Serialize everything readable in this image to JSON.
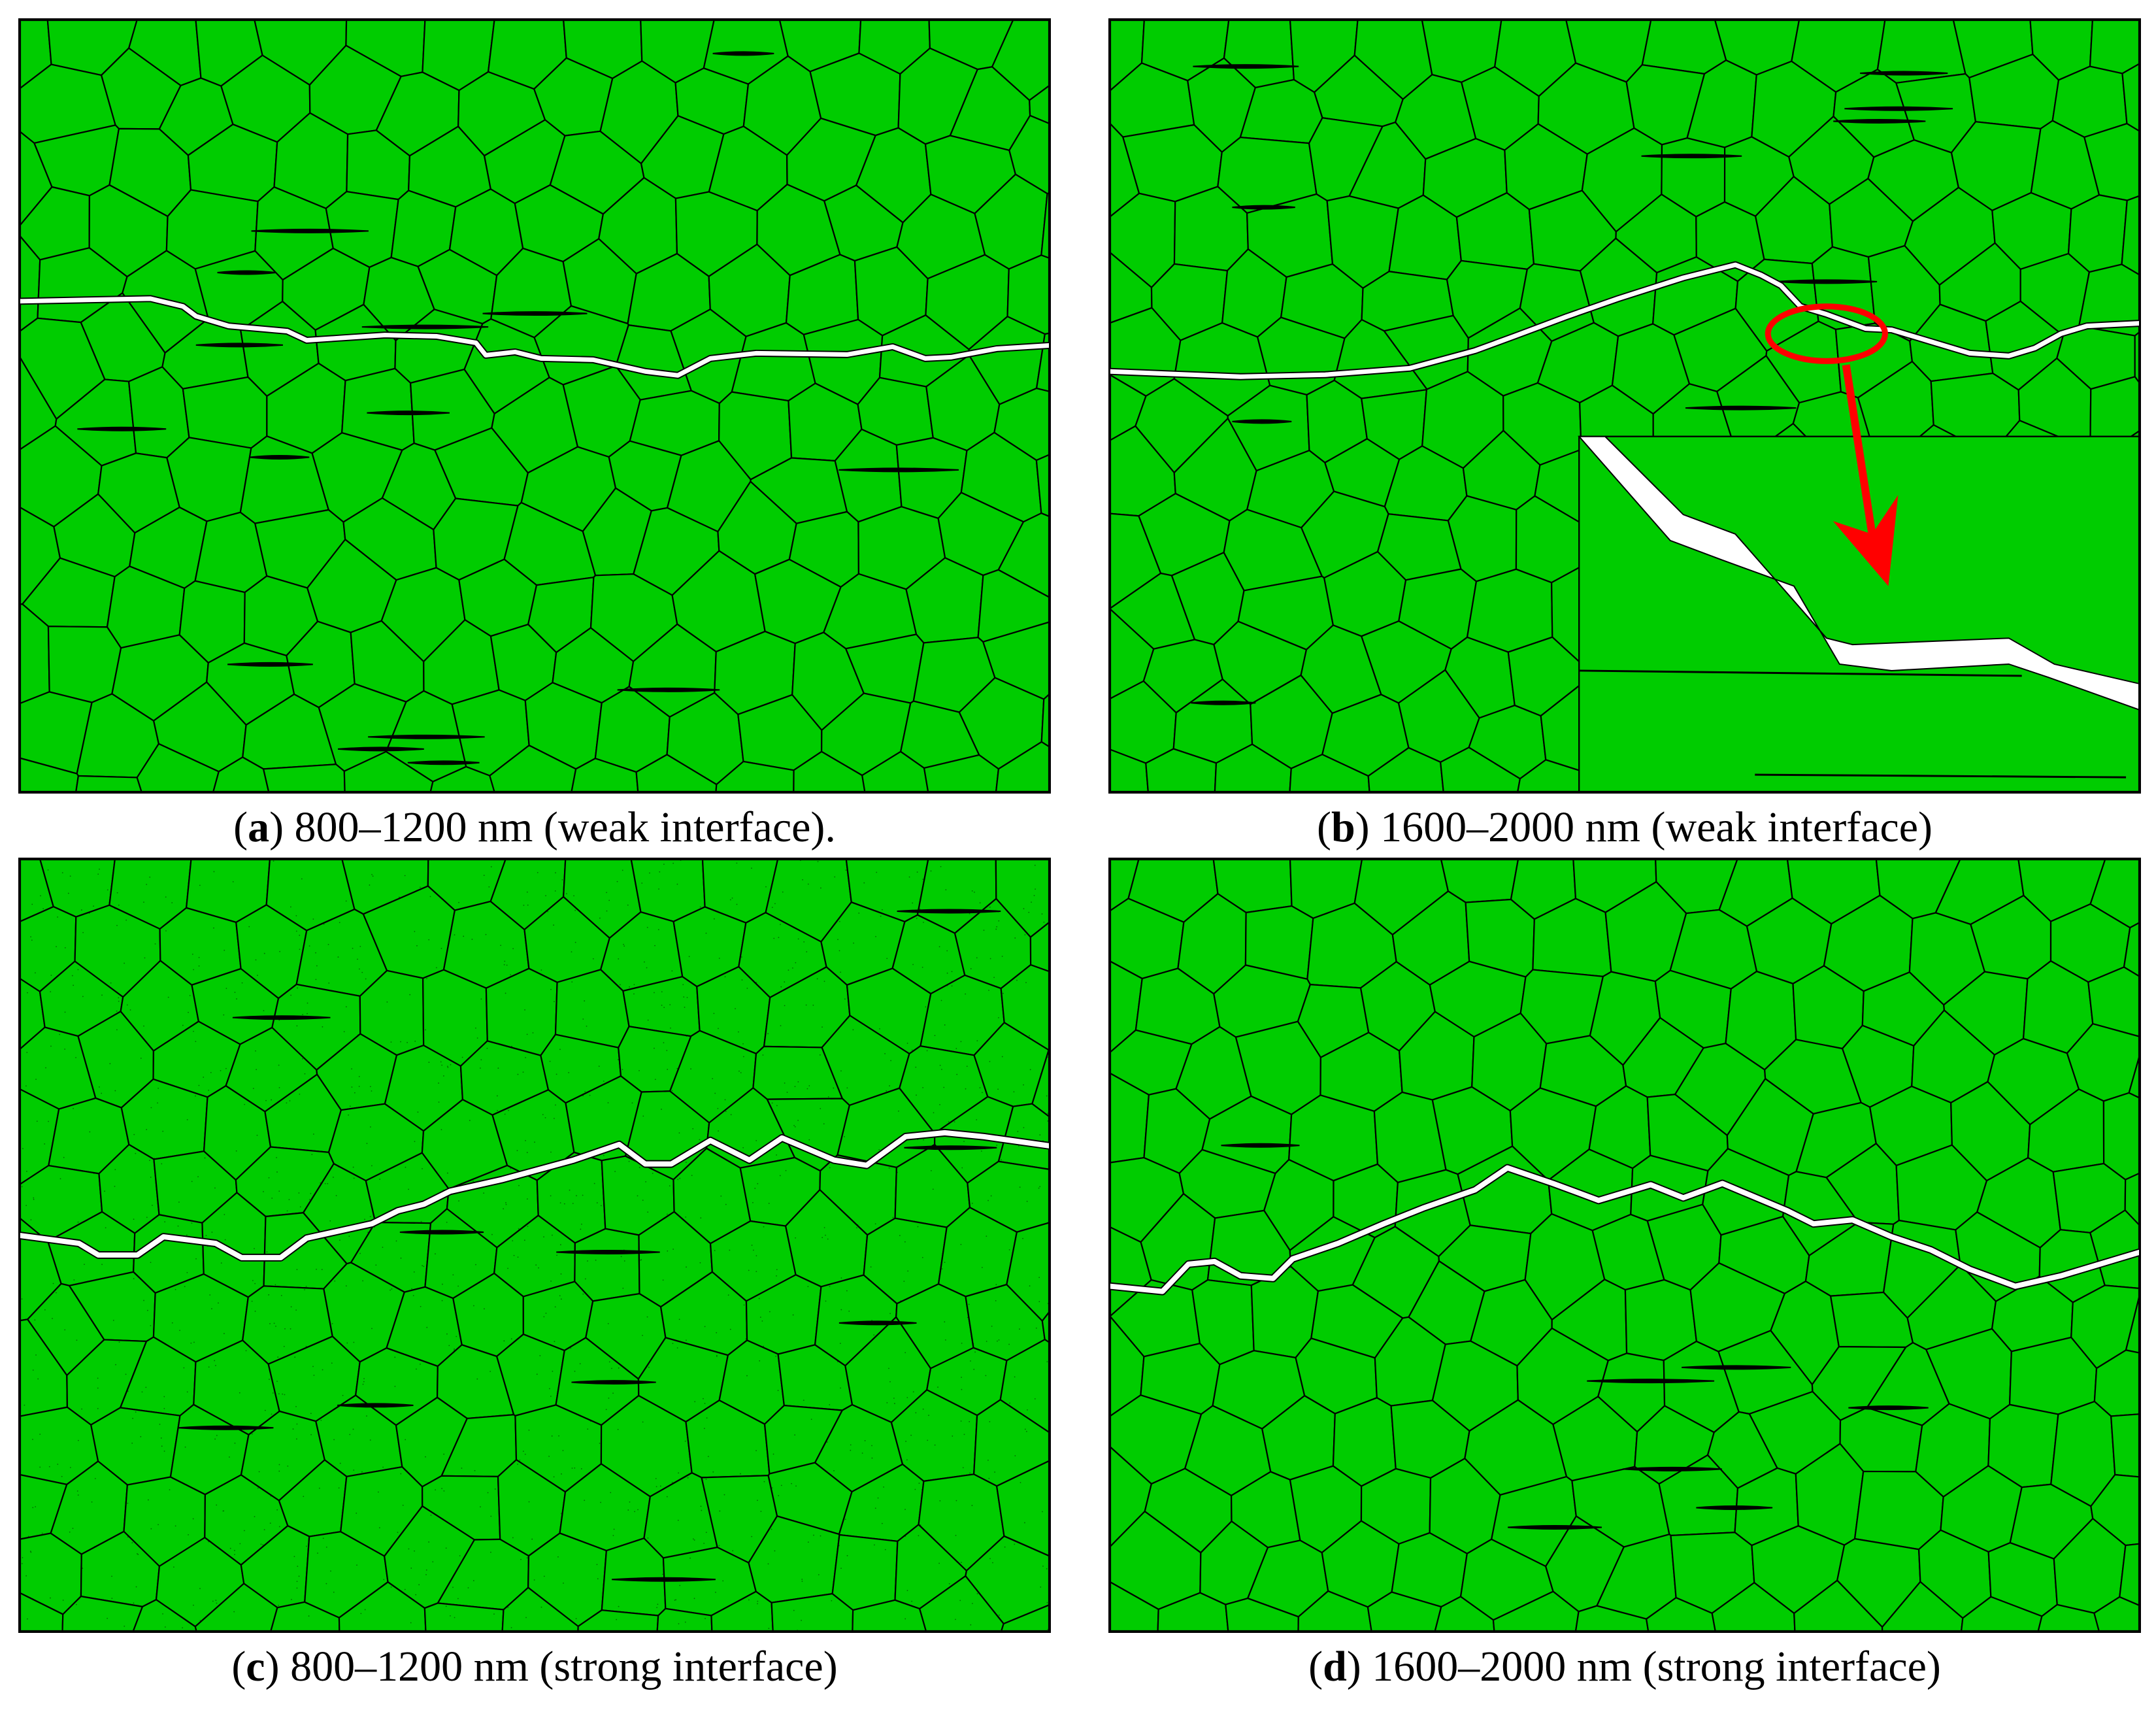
{
  "colors": {
    "grain_fill": "#00cc00",
    "boundary": "#000000",
    "crack": "#ffffff",
    "highlight": "#ff0000"
  },
  "panels": [
    {
      "id": "a",
      "letter": "a",
      "text": "800–1200 nm (weak interface).",
      "crack": "weak",
      "platelets": 15,
      "zoom_inset": false
    },
    {
      "id": "b",
      "letter": "b",
      "text": "1600–2000 nm (weak interface)",
      "crack": "weak",
      "platelets": 11,
      "zoom_inset": true
    },
    {
      "id": "c",
      "letter": "c",
      "text": "800–1200 nm (strong interface)",
      "crack": "strong",
      "platelets": 10,
      "zoom_inset": false
    },
    {
      "id": "d",
      "letter": "d",
      "text": "1600–2000 nm (strong interface)",
      "crack": "strong",
      "platelets": 7,
      "zoom_inset": false
    }
  ]
}
